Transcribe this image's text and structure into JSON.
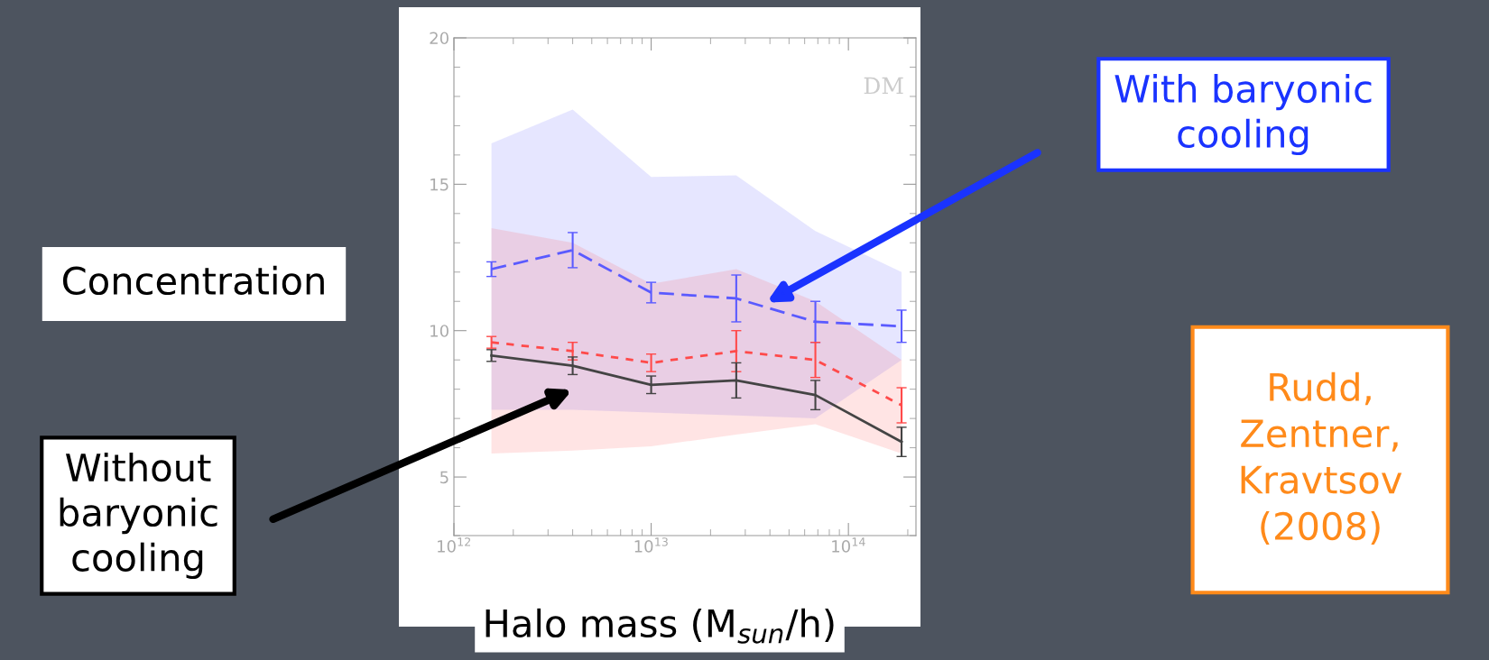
{
  "chart_data": {
    "type": "line",
    "ylabel": "Concentration",
    "xlabel": "Halo mass (M$_{sun}$/h)",
    "x": [
      1550000000000.0,
      4000000000000.0,
      10000000000000.0,
      27000000000000.0,
      68000000000000.0,
      186000000000000.0
    ],
    "series": [
      {
        "color": "#5a5aff",
        "line_style": "dashed",
        "values": [
          12.1,
          12.75,
          11.3,
          11.1,
          10.3,
          10.15
        ],
        "errors": [
          0.25,
          0.6,
          0.35,
          0.8,
          0.7,
          0.55
        ],
        "lower": [
          7.3,
          7.3,
          7.2,
          7.1,
          7.0,
          9.0
        ],
        "upper": [
          16.4,
          17.55,
          15.25,
          15.3,
          13.4,
          12.0
        ]
      },
      {
        "color": "#ff4a4a",
        "line_style": "dotted",
        "values": [
          9.6,
          9.3,
          8.9,
          9.3,
          9.0,
          7.45
        ],
        "errors": [
          0.2,
          0.3,
          0.3,
          0.7,
          0.6,
          0.6
        ],
        "lower": [
          5.8,
          5.9,
          6.05,
          6.45,
          6.8,
          5.8
        ],
        "upper": [
          13.5,
          13.0,
          11.6,
          12.1,
          11.0,
          9.0
        ]
      },
      {
        "color": "#444444",
        "line_style": "solid",
        "values": [
          9.15,
          8.8,
          8.15,
          8.3,
          7.8,
          6.2
        ],
        "errors": [
          0.2,
          0.3,
          0.3,
          0.6,
          0.5,
          0.5
        ]
      }
    ],
    "log": "x",
    "xlim": [
      1000000000000.0,
      220000000000000.0
    ],
    "xticks": [
      {
        "value": 1000000000000.0,
        "label": "10$^{12}$"
      },
      {
        "value": 10000000000000.0,
        "label": "10$^{13}$"
      },
      {
        "value": 100000000000000.0,
        "label": "10$^{14}$"
      }
    ],
    "ylim": [
      3,
      20
    ],
    "yticks": [
      5,
      10,
      15,
      20
    ],
    "marker": "none",
    "legend": false,
    "grid": false,
    "annotations": [
      "DM",
      "With baryonic cooling",
      "Without baryonic cooling",
      "Rudd, Zentner, Kravtsov (2008)"
    ]
  }
}
